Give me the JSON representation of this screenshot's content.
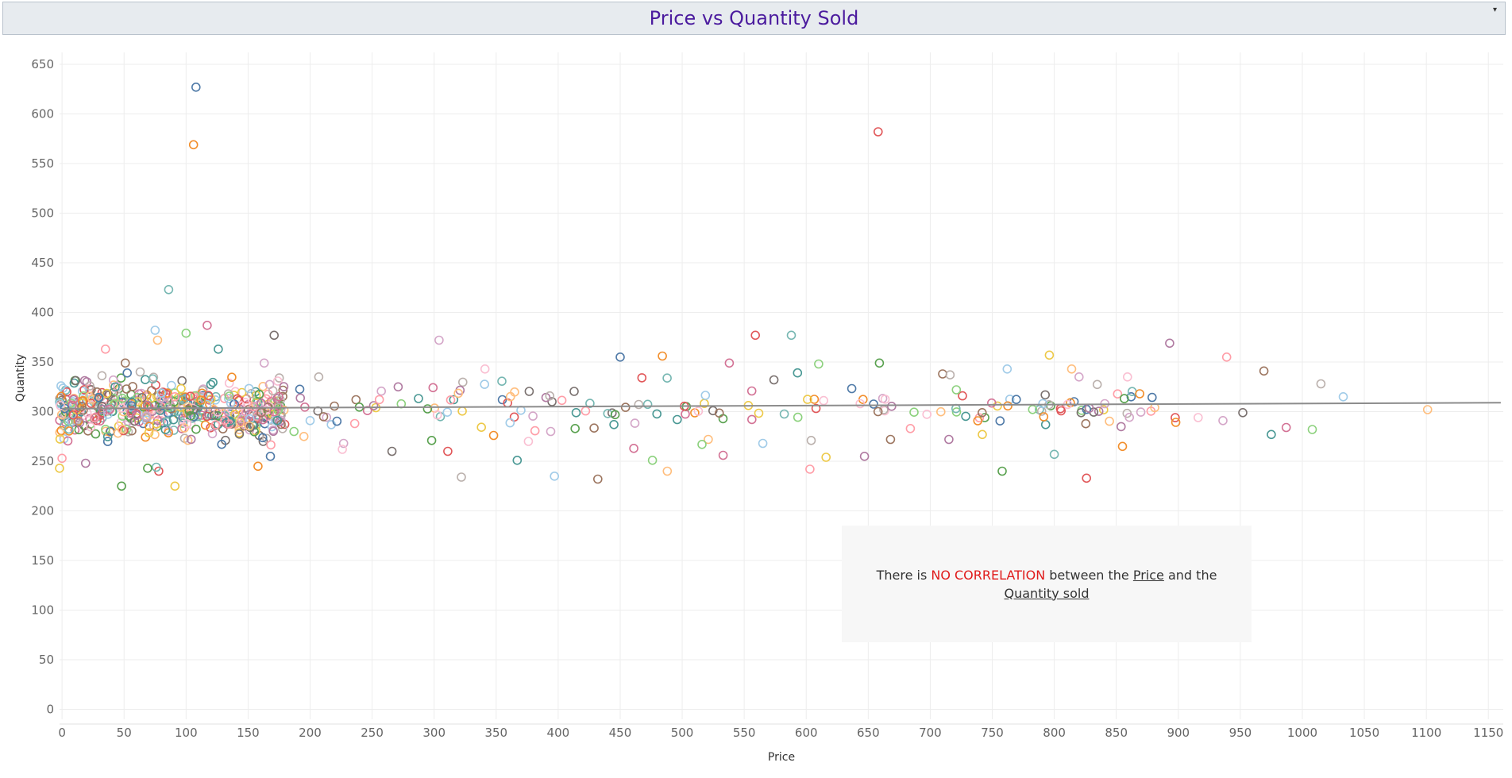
{
  "header": {
    "title": "Price vs Quantity Sold"
  },
  "note": {
    "part1": "There is ",
    "emphasis": "NO CORRELATION",
    "part2": " between the ",
    "price_word": "Price",
    "part3": " and the ",
    "quantity_word": "Quantity sold"
  },
  "colors": {
    "title": "#4b1b9e",
    "trend": "#8c8c8c",
    "emphasis": "#e01b1b",
    "palette": [
      "#4e79a7",
      "#f28e2b",
      "#e15759",
      "#76b7b2",
      "#59a14f",
      "#edc948",
      "#b07aa1",
      "#ff9da7",
      "#9c755f",
      "#bab0ac",
      "#a0cbe8",
      "#ffbe7d",
      "#8cd17d",
      "#d37295",
      "#499894",
      "#79706e",
      "#d4a6c8",
      "#fabfd2"
    ]
  },
  "chart_data": {
    "type": "scatter",
    "title": "Price vs Quantity Sold",
    "xlabel": "Price",
    "ylabel": "Quantity",
    "xlim": [
      -2,
      1162
    ],
    "ylim": [
      -10,
      662
    ],
    "xticks": [
      0,
      50,
      100,
      150,
      200,
      250,
      300,
      350,
      400,
      450,
      500,
      550,
      600,
      650,
      700,
      750,
      800,
      850,
      900,
      950,
      1000,
      1050,
      1100,
      1150
    ],
    "yticks": [
      0,
      50,
      100,
      150,
      200,
      250,
      300,
      350,
      400,
      450,
      500,
      550,
      600,
      650
    ],
    "grid": true,
    "trend_line": {
      "x": [
        0,
        1160
      ],
      "y": [
        303,
        309
      ]
    },
    "outliers": [
      {
        "x": 108,
        "y": 627
      },
      {
        "x": 106,
        "y": 569
      },
      {
        "x": 658,
        "y": 582
      },
      {
        "x": 86,
        "y": 423
      },
      {
        "x": 48,
        "y": 225
      },
      {
        "x": 91,
        "y": 225
      },
      {
        "x": 20,
        "y": 330
      },
      {
        "x": 35,
        "y": 363
      },
      {
        "x": 51,
        "y": 349
      },
      {
        "x": 63,
        "y": 340
      },
      {
        "x": 75,
        "y": 382
      },
      {
        "x": 77,
        "y": 372
      },
      {
        "x": 100,
        "y": 379
      },
      {
        "x": 117,
        "y": 387
      },
      {
        "x": 126,
        "y": 363
      },
      {
        "x": 171,
        "y": 377
      },
      {
        "x": 304,
        "y": 372
      },
      {
        "x": 341,
        "y": 343
      },
      {
        "x": 450,
        "y": 355
      },
      {
        "x": 484,
        "y": 356
      },
      {
        "x": 559,
        "y": 377
      },
      {
        "x": 588,
        "y": 377
      },
      {
        "x": 659,
        "y": 349
      },
      {
        "x": 796,
        "y": 357
      },
      {
        "x": 893,
        "y": 369
      },
      {
        "x": 939,
        "y": 355
      },
      {
        "x": 969,
        "y": 341
      },
      {
        "x": 1015,
        "y": 328
      },
      {
        "x": 1033,
        "y": 315
      },
      {
        "x": 1101,
        "y": 302
      },
      {
        "x": 1008,
        "y": 282
      },
      {
        "x": 987,
        "y": 284
      },
      {
        "x": 975,
        "y": 277
      },
      {
        "x": 952,
        "y": 299
      },
      {
        "x": 936,
        "y": 291
      },
      {
        "x": 916,
        "y": 294
      },
      {
        "x": 862,
        "y": 315
      },
      {
        "x": 855,
        "y": 265
      },
      {
        "x": 826,
        "y": 233
      },
      {
        "x": 800,
        "y": 257
      },
      {
        "x": 758,
        "y": 240
      },
      {
        "x": 616,
        "y": 254
      },
      {
        "x": 647,
        "y": 255
      },
      {
        "x": 603,
        "y": 242
      },
      {
        "x": 432,
        "y": 232
      },
      {
        "x": 322,
        "y": 234
      },
      {
        "x": 397,
        "y": 235
      },
      {
        "x": 488,
        "y": 240
      },
      {
        "x": 476,
        "y": 251
      },
      {
        "x": 533,
        "y": 256
      },
      {
        "x": 367,
        "y": 251
      },
      {
        "x": 266,
        "y": 260
      },
      {
        "x": 227,
        "y": 268
      },
      {
        "x": 226,
        "y": 262
      },
      {
        "x": 168,
        "y": 255
      },
      {
        "x": 158,
        "y": 245
      },
      {
        "x": 78,
        "y": 240
      },
      {
        "x": 76,
        "y": 244
      },
      {
        "x": 69,
        "y": 243
      },
      {
        "x": -2,
        "y": 243
      },
      {
        "x": 19,
        "y": 248
      },
      {
        "x": 0,
        "y": 253
      },
      {
        "x": 710,
        "y": 338
      },
      {
        "x": 716,
        "y": 337
      },
      {
        "x": 762,
        "y": 343
      },
      {
        "x": 814,
        "y": 343
      },
      {
        "x": 610,
        "y": 348
      },
      {
        "x": 538,
        "y": 349
      },
      {
        "x": 593,
        "y": 339
      },
      {
        "x": 574,
        "y": 332
      },
      {
        "x": 820,
        "y": 335
      },
      {
        "x": 859,
        "y": 335
      },
      {
        "x": 816,
        "y": 310
      },
      {
        "x": 813,
        "y": 309
      },
      {
        "x": 805,
        "y": 303
      },
      {
        "x": 788,
        "y": 302
      },
      {
        "x": 744,
        "y": 294
      },
      {
        "x": 742,
        "y": 277
      },
      {
        "x": 715,
        "y": 272
      },
      {
        "x": 684,
        "y": 283
      },
      {
        "x": 668,
        "y": 272
      },
      {
        "x": 604,
        "y": 271
      },
      {
        "x": 565,
        "y": 268
      },
      {
        "x": 521,
        "y": 272
      },
      {
        "x": 516,
        "y": 267
      },
      {
        "x": 461,
        "y": 263
      },
      {
        "x": 445,
        "y": 287
      },
      {
        "x": 395,
        "y": 310
      },
      {
        "x": 394,
        "y": 280
      },
      {
        "x": 376,
        "y": 270
      },
      {
        "x": 355,
        "y": 312
      },
      {
        "x": 348,
        "y": 276
      },
      {
        "x": 311,
        "y": 260
      },
      {
        "x": 305,
        "y": 295
      },
      {
        "x": 298,
        "y": 271
      },
      {
        "x": 253,
        "y": 304
      },
      {
        "x": 271,
        "y": 325
      },
      {
        "x": 236,
        "y": 288
      },
      {
        "x": 237,
        "y": 312
      },
      {
        "x": 207,
        "y": 335
      },
      {
        "x": 200,
        "y": 291
      },
      {
        "x": 195,
        "y": 275
      },
      {
        "x": 187,
        "y": 280
      },
      {
        "x": 150,
        "y": 307
      },
      {
        "x": 156,
        "y": 320
      },
      {
        "x": 159,
        "y": 276
      },
      {
        "x": 163,
        "y": 349
      }
    ],
    "cluster_points": 520,
    "cluster_x_range": [
      -2,
      180
    ],
    "cluster_y_range": [
      255,
      345
    ],
    "mid_points": 140,
    "mid_x_range": [
      180,
      900
    ],
    "mid_y_range": [
      265,
      340
    ]
  }
}
